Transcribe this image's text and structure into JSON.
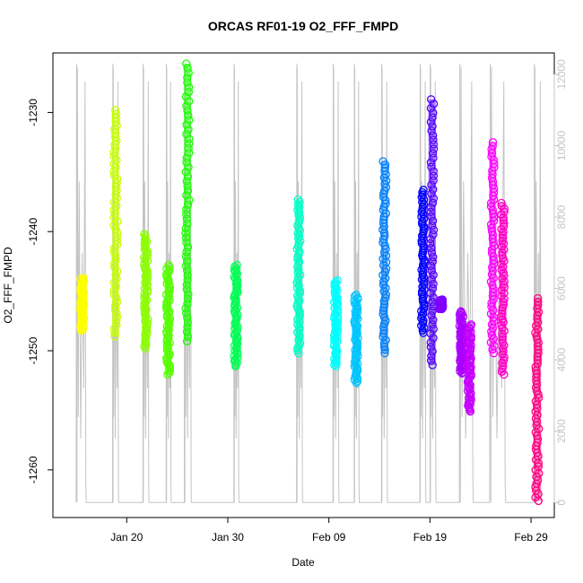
{
  "chart_data": {
    "type": "scatter",
    "title": "ORCAS RF01-19 O2_FFF_FMPD",
    "xlabel": "Date",
    "ylabel": "O2_FFF_FMPD",
    "x_ticks": [
      "Jan 20",
      "Jan 30",
      "Feb 09",
      "Feb 19",
      "Feb 29"
    ],
    "x_tick_days": [
      20,
      30,
      40,
      50,
      60
    ],
    "xlim": [
      12.7,
      62.3
    ],
    "ylim": [
      -1264,
      -1225
    ],
    "y_ticks": [
      -1260,
      -1250,
      -1240,
      -1230
    ],
    "y2_label": "",
    "y2_ticks": [
      0,
      2000,
      4000,
      6000,
      8000,
      10000,
      12000
    ],
    "y2lim": [
      -420,
      12600
    ],
    "grid": false,
    "legend": "none",
    "altitude_color": "#c4c4c4",
    "altitude_label": "",
    "series": [
      {
        "x": 15.6,
        "ymin": -1248.3,
        "ymax": -1243.9,
        "color": "#ffff00"
      },
      {
        "x": 18.9,
        "ymin": -1248.8,
        "ymax": -1229.8,
        "color": "#c6ff00"
      },
      {
        "x": 21.9,
        "ymin": -1249.8,
        "ymax": -1240.2,
        "color": "#8cff00"
      },
      {
        "x": 24.1,
        "ymin": -1252.0,
        "ymax": -1242.8,
        "color": "#55ff00"
      },
      {
        "x": 26.0,
        "ymin": -1249.2,
        "ymax": -1225.9,
        "color": "#1aff00"
      },
      {
        "x": 30.8,
        "ymin": -1251.3,
        "ymax": -1242.8,
        "color": "#00ff55"
      },
      {
        "x": 37.0,
        "ymin": -1250.2,
        "ymax": -1237.3,
        "color": "#00ffc6"
      },
      {
        "x": 40.7,
        "ymin": -1251.3,
        "ymax": -1244.1,
        "color": "#00ffff"
      },
      {
        "x": 42.7,
        "ymin": -1252.7,
        "ymax": -1245.3,
        "color": "#00c6ff"
      },
      {
        "x": 45.5,
        "ymin": -1250.2,
        "ymax": -1234.1,
        "color": "#0080ff"
      },
      {
        "x": 49.3,
        "ymin": -1248.5,
        "ymax": -1236.5,
        "color": "#0000ff"
      },
      {
        "x": 50.2,
        "ymin": -1251.2,
        "ymax": -1228.9,
        "color": "#5500ff"
      },
      {
        "x": 51.1,
        "ymin": -1246.5,
        "ymax": -1245.7,
        "color": "#8000ff"
      },
      {
        "x": 53.1,
        "ymin": -1251.9,
        "ymax": -1246.7,
        "color": "#aa00ff"
      },
      {
        "x": 53.9,
        "ymin": -1255.1,
        "ymax": -1247.8,
        "color": "#c600ff"
      },
      {
        "x": 56.2,
        "ymin": -1250.2,
        "ymax": -1232.5,
        "color": "#ff00ff"
      },
      {
        "x": 57.2,
        "ymin": -1252.0,
        "ymax": -1237.6,
        "color": "#ff00c6"
      },
      {
        "x": 60.6,
        "ymin": -1262.6,
        "ymax": -1245.6,
        "color": "#ff0080"
      }
    ],
    "altitude_flights": [
      {
        "start": 15.0,
        "end": 16.0
      },
      {
        "start": 18.6,
        "end": 19.2
      },
      {
        "start": 21.6,
        "end": 22.2
      },
      {
        "start": 23.9,
        "end": 24.4
      },
      {
        "start": 25.7,
        "end": 26.4
      },
      {
        "start": 30.6,
        "end": 31.1
      },
      {
        "start": 36.8,
        "end": 37.4
      },
      {
        "start": 40.4,
        "end": 41.0
      },
      {
        "start": 42.5,
        "end": 43.0
      },
      {
        "start": 45.2,
        "end": 45.8
      },
      {
        "start": 49.0,
        "end": 49.6
      },
      {
        "start": 50.0,
        "end": 50.6
      },
      {
        "start": 52.9,
        "end": 54.3
      },
      {
        "start": 55.9,
        "end": 57.5
      },
      {
        "start": 60.3,
        "end": 61.0
      }
    ]
  }
}
